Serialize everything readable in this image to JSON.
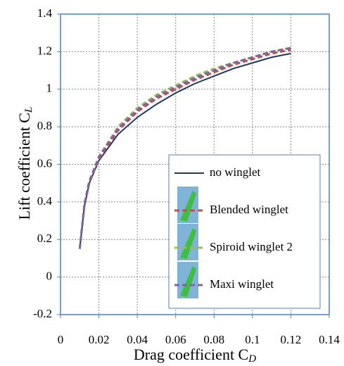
{
  "chart_data": {
    "type": "line",
    "ylabel": "Lift coefficient C",
    "ylabel_sub": "L",
    "xlabel": "Drag coefficient C",
    "xlabel_sub": "D",
    "x": [
      0.01,
      0.0125,
      0.015,
      0.02,
      0.03,
      0.04,
      0.05,
      0.06,
      0.07,
      0.08,
      0.09,
      0.1,
      0.11,
      0.12
    ],
    "series": [
      {
        "name": "no winglet",
        "color": "#1f3864",
        "style": "solid",
        "values": [
          0.15,
          0.38,
          0.5,
          0.62,
          0.76,
          0.85,
          0.92,
          0.98,
          1.03,
          1.07,
          1.11,
          1.14,
          1.17,
          1.19
        ]
      },
      {
        "name": "Blended winglet",
        "color": "#c0504d",
        "style": "dashed",
        "values": [
          0.15,
          0.38,
          0.5,
          0.63,
          0.78,
          0.88,
          0.95,
          1.0,
          1.05,
          1.09,
          1.13,
          1.16,
          1.19,
          1.21
        ]
      },
      {
        "name": "Spiroid winglet 2",
        "color": "#9bbb59",
        "style": "dashed",
        "values": [
          0.15,
          0.39,
          0.51,
          0.64,
          0.8,
          0.9,
          0.97,
          1.02,
          1.07,
          1.11,
          1.14,
          1.17,
          1.2,
          1.22
        ]
      },
      {
        "name": "Maxi winglet",
        "color": "#8064a2",
        "style": "dashed",
        "values": [
          0.15,
          0.39,
          0.51,
          0.64,
          0.79,
          0.89,
          0.96,
          1.01,
          1.06,
          1.1,
          1.14,
          1.17,
          1.2,
          1.22
        ]
      }
    ],
    "xlim": [
      0,
      0.14
    ],
    "xticks": [
      0,
      0.02,
      0.04,
      0.06,
      0.08,
      0.1,
      0.12,
      0.14
    ],
    "ylim": [
      -0.2,
      1.4
    ],
    "yticks": [
      -0.2,
      0,
      0.2,
      0.4,
      0.6,
      0.8,
      1,
      1.2,
      1.4
    ],
    "grid": true,
    "legend": "lower right"
  }
}
